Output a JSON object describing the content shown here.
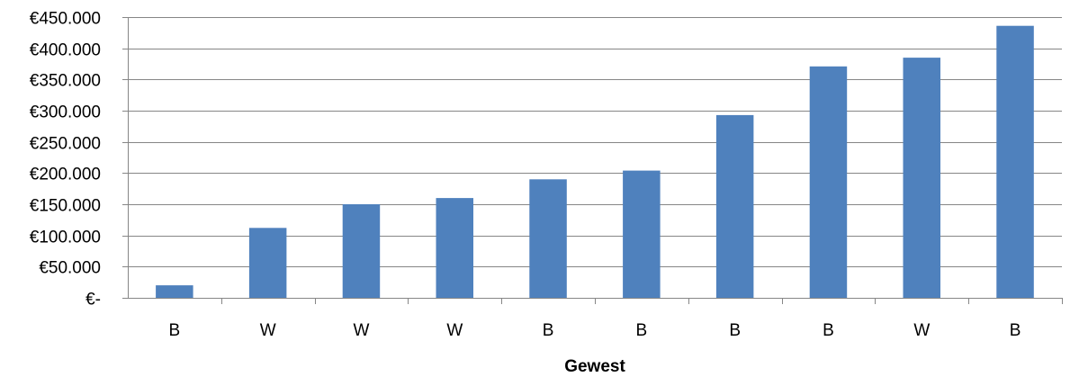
{
  "chart_data": {
    "type": "bar",
    "categories": [
      "B",
      "W",
      "W",
      "W",
      "B",
      "B",
      "B",
      "B",
      "W",
      "B"
    ],
    "values": [
      20000,
      112000,
      150000,
      160000,
      190000,
      204000,
      293000,
      371000,
      385000,
      436000
    ],
    "title": "",
    "xlabel": "Gewest",
    "ylabel": "",
    "ylim": [
      0,
      450000
    ],
    "yticks": [
      0,
      50000,
      100000,
      150000,
      200000,
      250000,
      300000,
      350000,
      400000,
      450000
    ],
    "ytick_labels": [
      "€-",
      "€50.000",
      "€100.000",
      "€150.000",
      "€200.000",
      "€250.000",
      "€300.000",
      "€350.000",
      "€400.000",
      "€450.000"
    ],
    "grid": true,
    "legend": "none",
    "colors": {
      "bar": "#4f81bd",
      "grid": "#868686",
      "axis": "#868686"
    }
  }
}
